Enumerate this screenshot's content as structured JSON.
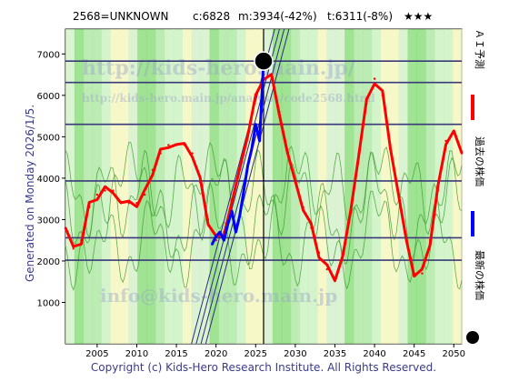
{
  "header": {
    "code": "2568=UNKNOWN",
    "current": "c:6828",
    "min_text": "m:3934(-42%)",
    "target_text": "t:6311(-8%)",
    "stars": "★★★"
  },
  "side_left": "Generated on Monday 2026/1/5.",
  "footer": "Copyright (c) Kids-Hero Research Institute. All Rights Reserved.",
  "legend": [
    {
      "label": "ＡＩ予測",
      "color": "#ff0000",
      "marker": "line"
    },
    {
      "label": "過去の株価",
      "color": "#0000ff",
      "marker": "line"
    },
    {
      "label": "最新の株価",
      "color": "#000000",
      "marker": "dot"
    }
  ],
  "watermarks": [
    "http://kids-hero.main.jp/",
    "http://kids-hero.main.jp/analysis/code2568.html",
    "info@kids-hero.main.jp"
  ],
  "chart_data": {
    "type": "line",
    "xlim": [
      2001,
      2051
    ],
    "ylim": [
      0,
      7600
    ],
    "x_ticks": [
      2005,
      2010,
      2015,
      2020,
      2025,
      2030,
      2035,
      2040,
      2045,
      2050
    ],
    "y_ticks": [
      1000,
      2000,
      3000,
      4000,
      5000,
      6000,
      7000
    ],
    "hlines": [
      6828,
      6311,
      5300,
      3934,
      2560,
      2020
    ],
    "current_x": 2026,
    "current_y": 6828,
    "series": [
      {
        "name": "ＡＩ予測",
        "color": "#ff0000",
        "x": [
          2001,
          2002,
          2003,
          2004,
          2005,
          2006,
          2007,
          2008,
          2009,
          2010,
          2011,
          2012,
          2013,
          2014,
          2015,
          2016,
          2017,
          2018,
          2019,
          2020,
          2021,
          2022,
          2023,
          2024,
          2025,
          2026,
          2027,
          2028,
          2029,
          2030,
          2031,
          2032,
          2033,
          2034,
          2035,
          2036,
          2037,
          2038,
          2039,
          2040,
          2041,
          2042,
          2043,
          2044,
          2045,
          2046,
          2047,
          2048,
          2049,
          2050,
          2051
        ],
        "y": [
          2800,
          2300,
          2500,
          3300,
          3600,
          3700,
          3700,
          3400,
          3400,
          3400,
          3600,
          4200,
          4600,
          4800,
          4800,
          4800,
          4600,
          3900,
          3000,
          2500,
          2700,
          3400,
          4200,
          5100,
          5900,
          6500,
          6400,
          5600,
          4600,
          3900,
          3300,
          2800,
          2200,
          1800,
          1600,
          2100,
          3200,
          4600,
          5800,
          6400,
          6000,
          4800,
          3600,
          2500,
          1700,
          1700,
          2500,
          3700,
          4900,
          5100,
          4600
        ]
      },
      {
        "name": "過去の株価",
        "color": "#0000ff",
        "x": [
          2019.5,
          2020,
          2020.5,
          2021,
          2021.5,
          2022,
          2022.5,
          2023,
          2023.5,
          2024,
          2024.5,
          2025,
          2025.5,
          2026
        ],
        "y": [
          2400,
          2600,
          2700,
          2500,
          2900,
          3200,
          2700,
          3100,
          3700,
          4300,
          4700,
          5300,
          4900,
          6828
        ]
      }
    ]
  }
}
